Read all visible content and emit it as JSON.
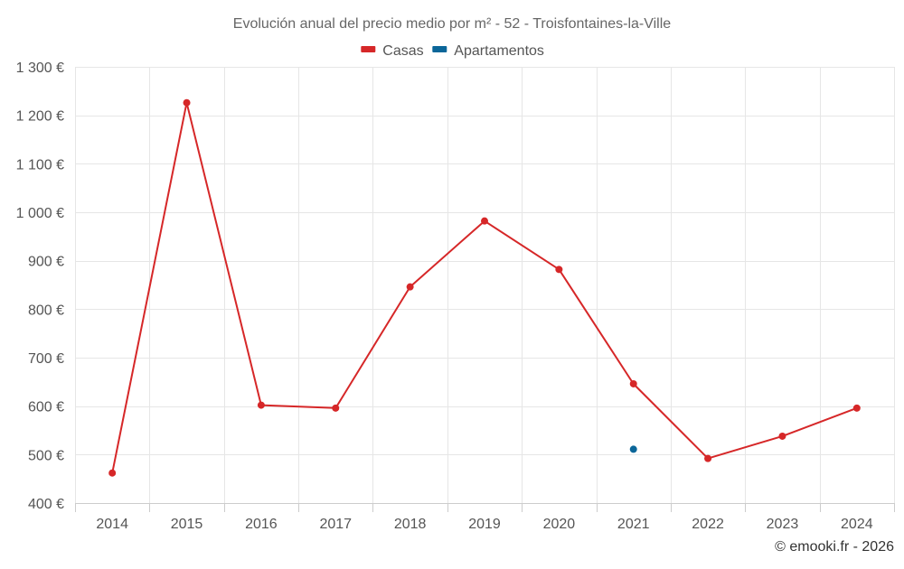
{
  "chart_data": {
    "type": "line",
    "title": "Evolución anual del precio medio por m² - 52 - Troisfontaines-la-Ville",
    "categories": [
      "2014",
      "2015",
      "2016",
      "2017",
      "2018",
      "2019",
      "2020",
      "2021",
      "2022",
      "2023",
      "2024"
    ],
    "series": [
      {
        "name": "Casas",
        "color": "#d62728",
        "values": [
          462,
          1226,
          602,
          596,
          846,
          982,
          882,
          646,
          492,
          538,
          596
        ]
      },
      {
        "name": "Apartamentos",
        "color": "#0b6699",
        "values": [
          null,
          null,
          null,
          null,
          null,
          null,
          null,
          511,
          null,
          null,
          null
        ]
      }
    ],
    "ylim": [
      400,
      1300
    ],
    "yticks": [
      400,
      500,
      600,
      700,
      800,
      900,
      1000,
      1100,
      1200,
      1300
    ],
    "ytick_labels": [
      "400 €",
      "500 €",
      "600 €",
      "700 €",
      "800 €",
      "900 €",
      "1 000 €",
      "1 100 €",
      "1 200 €",
      "1 300 €"
    ],
    "xlabel": "",
    "ylabel": "",
    "legend_position": "top-center",
    "grid": true
  },
  "credit": "© emooki.fr - 2026"
}
